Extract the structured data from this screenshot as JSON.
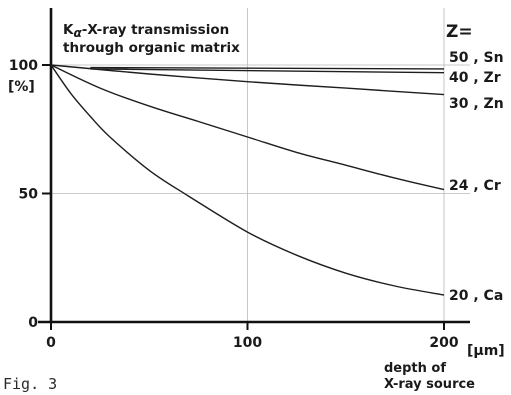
{
  "chart_data": {
    "type": "line",
    "title_line1": "-X-ray transmission",
    "title_k": "K",
    "title_alpha": "α",
    "title_line2": "through organic matrix",
    "legend_header": "Z=",
    "ylabel": "[%]",
    "xlabel_unit": "[μm]",
    "xlabel_line1": "depth of",
    "xlabel_line2": "X-ray source",
    "xlim": [
      0,
      200
    ],
    "ylim": [
      0,
      100
    ],
    "x_ticks": [
      {
        "value": 0,
        "label": "0"
      },
      {
        "value": 100,
        "label": "100"
      },
      {
        "value": 200,
        "label": "200"
      }
    ],
    "y_ticks": [
      {
        "value": 0,
        "label": "0"
      },
      {
        "value": 50,
        "label": "50"
      },
      {
        "value": 100,
        "label": "100"
      }
    ],
    "grid": true,
    "series": [
      {
        "name": "50 , Sn",
        "x": [
          20,
          200
        ],
        "y": [
          99,
          98.5
        ]
      },
      {
        "name": "40 , Zr",
        "x": [
          20,
          200
        ],
        "y": [
          98.5,
          97
        ]
      },
      {
        "name": "30 , Zn",
        "x": [
          0,
          50,
          100,
          150,
          200
        ],
        "y": [
          100,
          96.5,
          93.5,
          91,
          88.5
        ]
      },
      {
        "name": "24 , Cr",
        "x": [
          0,
          25,
          50,
          75,
          100,
          125,
          150,
          175,
          200
        ],
        "y": [
          100,
          91,
          84,
          78,
          72,
          66,
          61,
          56,
          51.5
        ]
      },
      {
        "name": "20 , Ca",
        "x": [
          0,
          10,
          20,
          30,
          50,
          70,
          100,
          125,
          150,
          175,
          200
        ],
        "y": [
          100,
          89,
          80,
          72,
          59,
          49,
          35,
          26,
          19,
          14,
          10.5
        ]
      }
    ]
  },
  "figure_caption": "Fig. 3"
}
